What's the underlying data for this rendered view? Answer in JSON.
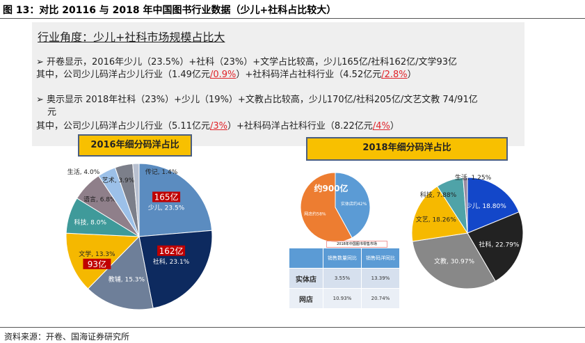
{
  "title": "图 13：对比 20116 与 2018 年中国图书行业数据（少儿+社科占比较大）",
  "panel": {
    "heading": "行业角度：少儿+社科市场规模占比大",
    "l1": "➢  开卷显示，2016年少儿（23.5%）+社科（23%）+文学占比较高，少儿165亿/社科162亿/文学93亿",
    "l2a": "其中，公司少儿码洋占少儿行业（1.49亿元",
    "l2b": "/0.9%",
    "l2c": "）+社科码洋占社科行业（4.52亿元",
    "l2d": "/2.8%",
    "l2e": "）",
    "l3": "➢  奥示显示  2018年社科（23%）+少儿（19%）+文教占比较高，少儿170亿/社科205亿/文艺文教 74/91亿",
    "l4": "元",
    "l5a": "其中，公司少儿码洋占少儿行业（5.11亿元",
    "l5b": "/3%",
    "l5c": "）+社科码洋占社科行业（8.22亿元",
    "l5d": "/4%",
    "l5e": "）"
  },
  "chart_data": [
    {
      "type": "pie",
      "title": "2016年细分码洋占比",
      "slices": [
        {
          "label": "少儿, 23.5%",
          "value": 23.5,
          "color": "#5b8cc0",
          "callout": "165亿"
        },
        {
          "label": "社科, 23.1%",
          "value": 23.1,
          "color": "#0d2a5f",
          "callout": "162亿"
        },
        {
          "label": "教辅, 15.3%",
          "value": 15.3,
          "color": "#6e7f99"
        },
        {
          "label": "文学, 13.3%",
          "value": 13.3,
          "color": "#f5b800",
          "callout": "93亿"
        },
        {
          "label": "科技, 8.0%",
          "value": 8.0,
          "color": "#3f9a9a"
        },
        {
          "label": "语言, 6.8%",
          "value": 6.8,
          "color": "#8f7f8a"
        },
        {
          "label": "生活, 4.0%",
          "value": 4.0,
          "color": "#9cc0e8"
        },
        {
          "label": "艺术, 3.9%",
          "value": 3.9,
          "color": "#7c7f8a"
        },
        {
          "label": "传记, 1.4%",
          "value": 1.4,
          "color": "#b8c0d0"
        }
      ]
    },
    {
      "type": "pie",
      "title": "约900亿",
      "subtitle": "2018年中国图书零售市场",
      "slices": [
        {
          "label": "实体店约42%",
          "value": 42,
          "color": "#5b9bd5"
        },
        {
          "label": "网店约58%",
          "value": 58,
          "color": "#ed7d31"
        }
      ]
    },
    {
      "type": "table",
      "header": [
        "",
        "销售数量同比",
        "销售码洋同比"
      ],
      "rows": [
        [
          "实体店",
          "3.55%",
          "13.39%"
        ],
        [
          "网店",
          "10.93%",
          "20.74%"
        ]
      ]
    },
    {
      "type": "pie",
      "title": "2018年细分码洋占比",
      "slices": [
        {
          "label": "少儿, 18.80%",
          "value": 18.8,
          "color": "#1347c9"
        },
        {
          "label": "社科, 22.79%",
          "value": 22.79,
          "color": "#222222"
        },
        {
          "label": "文教, 30.97%",
          "value": 30.97,
          "color": "#888888"
        },
        {
          "label": "文艺, 18.26%",
          "value": 18.26,
          "color": "#f6b900"
        },
        {
          "label": "科技, 7.88%",
          "value": 7.88,
          "color": "#4fa3a8"
        },
        {
          "label": "生活, 1.25%",
          "value": 1.25,
          "color": "#9a8aa0"
        }
      ]
    }
  ],
  "footer": "资料来源：开卷、国海证券研究所"
}
